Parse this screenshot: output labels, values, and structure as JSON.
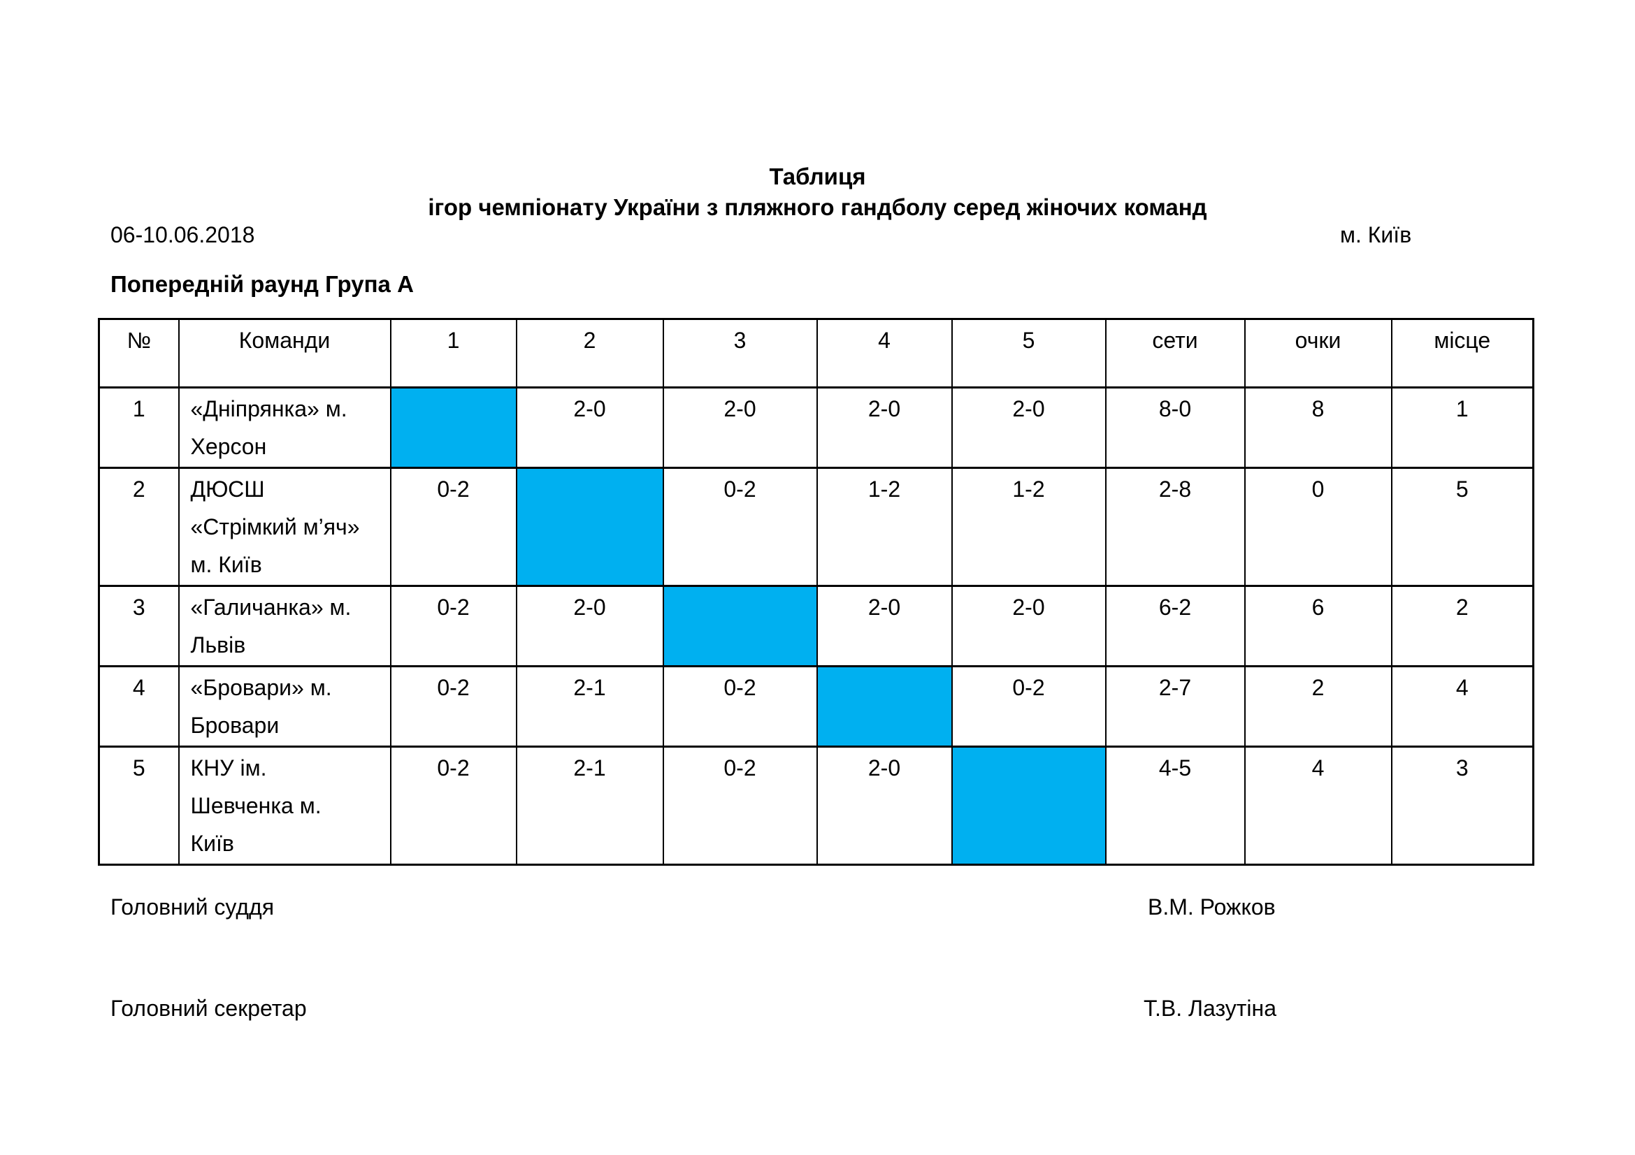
{
  "header": {
    "title_line1": "Таблиця",
    "title_line2": "ігор чемпіонату України з пляжного гандболу серед жіночих команд",
    "date_range": "06-10.06.2018",
    "city": "м. Київ",
    "section_title": "Попередній раунд Група А"
  },
  "table": {
    "columns": [
      "№",
      "Команди",
      "1",
      "2",
      "3",
      "4",
      "5",
      "сети",
      "очки",
      "місце"
    ],
    "highlight_color": "#00B0F0",
    "rows": [
      {
        "num": "1",
        "team": "«Дніпрянка» м.\nХерсон",
        "results": [
          "",
          "2-0",
          "2-0",
          "2-0",
          "2-0"
        ],
        "highlight_index": 0,
        "sets": "8-0",
        "points": "8",
        "place": "1"
      },
      {
        "num": "2",
        "team": "ДЮСШ\n«Стрімкий м’яч»\nм. Київ",
        "results": [
          "0-2",
          "",
          "0-2",
          "1-2",
          "1-2"
        ],
        "highlight_index": 1,
        "sets": "2-8",
        "points": "0",
        "place": "5"
      },
      {
        "num": "3",
        "team": "«Галичанка» м.\nЛьвів",
        "results": [
          "0-2",
          "2-0",
          "",
          "2-0",
          "2-0"
        ],
        "highlight_index": 2,
        "sets": "6-2",
        "points": "6",
        "place": "2"
      },
      {
        "num": "4",
        "team": "«Бровари» м.\nБровари",
        "results": [
          "0-2",
          "2-1",
          "0-2",
          "",
          "0-2"
        ],
        "highlight_index": 3,
        "sets": "2-7",
        "points": "2",
        "place": "4"
      },
      {
        "num": "5",
        "team": "КНУ ім.\nШевченка м.\nКиїв",
        "results": [
          "0-2",
          "2-1",
          "0-2",
          "2-0",
          ""
        ],
        "highlight_index": 4,
        "sets": "4-5",
        "points": "4",
        "place": "3"
      }
    ]
  },
  "footer": {
    "judge_label": "Головний суддя",
    "judge_name": "В.М. Рожков",
    "secretary_label": "Головний секретар",
    "secretary_name": "Т.В. Лазутіна"
  }
}
